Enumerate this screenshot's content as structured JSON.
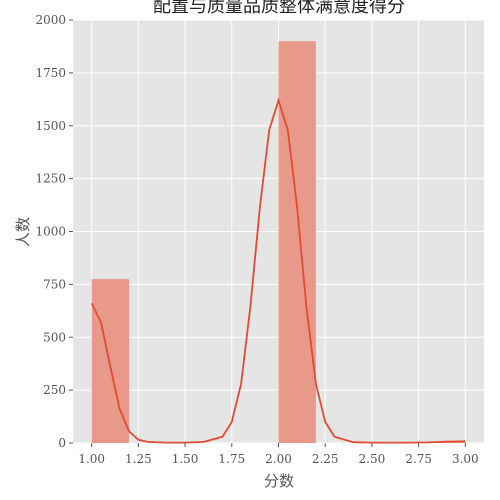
{
  "chart_data": {
    "type": "bar",
    "title": "配置与质量品质整体满意度得分",
    "xlabel": "分数",
    "ylabel": "人数",
    "xlim": [
      0.9,
      3.1
    ],
    "ylim": [
      0,
      2000
    ],
    "x_ticks": [
      "1.00",
      "1.25",
      "1.50",
      "1.75",
      "2.00",
      "2.25",
      "2.50",
      "2.75",
      "3.00"
    ],
    "x_tick_values": [
      1.0,
      1.25,
      1.5,
      1.75,
      2.0,
      2.25,
      2.5,
      2.75,
      3.0
    ],
    "y_ticks": [
      "0",
      "250",
      "500",
      "750",
      "1000",
      "1250",
      "1500",
      "1750",
      "2000"
    ],
    "y_tick_values": [
      0,
      250,
      500,
      750,
      1000,
      1250,
      1500,
      1750,
      2000
    ],
    "bins": [
      {
        "x0": 1.0,
        "x1": 1.2,
        "value": 775
      },
      {
        "x0": 2.0,
        "x1": 2.2,
        "value": 1900
      },
      {
        "x0": 2.8,
        "x1": 3.0,
        "value": 5
      }
    ],
    "kde": {
      "x": [
        1.0,
        1.05,
        1.1,
        1.15,
        1.2,
        1.25,
        1.3,
        1.4,
        1.5,
        1.6,
        1.7,
        1.75,
        1.8,
        1.85,
        1.9,
        1.95,
        2.0,
        2.05,
        2.1,
        2.15,
        2.2,
        2.25,
        2.3,
        2.4,
        2.5,
        2.6,
        2.7,
        2.8,
        2.9,
        3.0
      ],
      "y": [
        660,
        570,
        360,
        160,
        55,
        15,
        5,
        2,
        2,
        5,
        30,
        100,
        280,
        650,
        1110,
        1480,
        1620,
        1480,
        1110,
        640,
        280,
        100,
        30,
        4,
        2,
        2,
        2,
        3,
        6,
        8
      ]
    },
    "grid": true,
    "colors": {
      "background": "#e5e5e5",
      "grid": "#ffffff",
      "bar": "#e9998a",
      "line": "#e24a33",
      "tick": "#555555"
    }
  }
}
